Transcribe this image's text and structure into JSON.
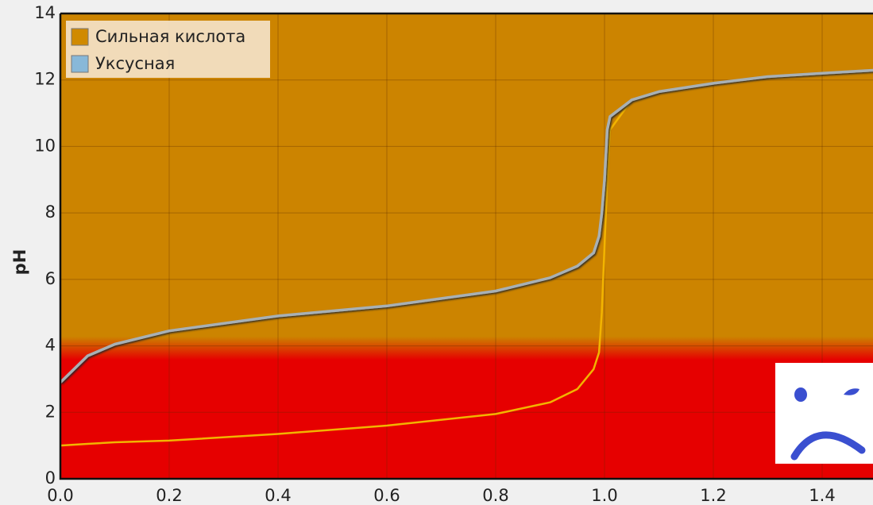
{
  "chart_data": {
    "type": "line",
    "ylabel": "pH",
    "x": [
      0,
      0.05,
      0.1,
      0.2,
      0.4,
      0.6,
      0.8,
      0.9,
      0.95,
      0.98,
      0.99,
      0.995,
      1.0,
      1.005,
      1.01,
      1.05,
      1.1,
      1.2,
      1.3,
      1.4,
      1.5
    ],
    "series": [
      {
        "name": "Сильная кислота",
        "color": "#d08a00",
        "line_color": "#f2b400",
        "values": [
          1.0,
          1.05,
          1.1,
          1.15,
          1.35,
          1.6,
          1.95,
          2.3,
          2.7,
          3.3,
          3.8,
          5,
          7,
          9,
          10.5,
          11.4,
          11.65,
          11.9,
          12.1,
          12.2,
          12.3
        ]
      },
      {
        "name": "Уксусная",
        "color": "#88b8d8",
        "line_color": "#a8b0b4",
        "values": [
          2.9,
          3.7,
          4.05,
          4.45,
          4.9,
          5.2,
          5.65,
          6.05,
          6.4,
          6.8,
          7.3,
          8,
          9,
          10.5,
          10.9,
          11.4,
          11.65,
          11.9,
          12.1,
          12.2,
          12.3
        ]
      }
    ],
    "xlim": [
      0,
      1.5
    ],
    "ylim": [
      0,
      14
    ],
    "xticks": [
      {
        "value": 0,
        "label": "0.0"
      },
      0.2,
      0.4,
      0.6,
      0.8,
      {
        "value": 1,
        "label": "1.0"
      },
      1.2,
      1.4
    ],
    "yticks": [
      0,
      2,
      4,
      6,
      8,
      10,
      12,
      14
    ],
    "grid": true,
    "legend": "upper left",
    "background": "#cc8400",
    "acid_zone": {
      "color": "#e60000",
      "ph_max": 4
    }
  }
}
